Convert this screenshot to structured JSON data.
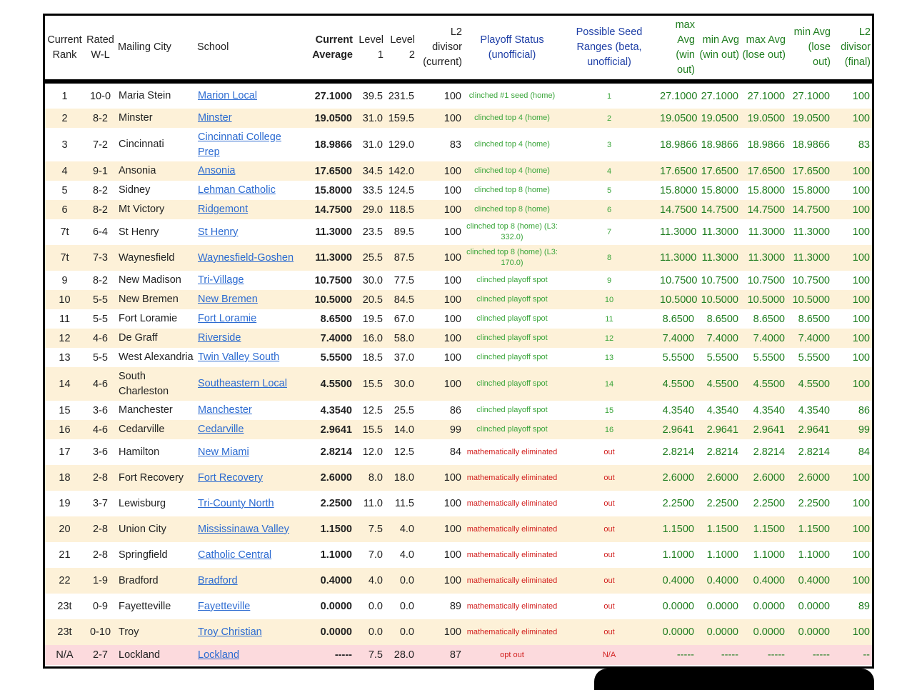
{
  "headers": {
    "rank": "Current Rank",
    "wl": "Rated W-L",
    "city": "Mailing City",
    "school": "School",
    "avg": "Current Average",
    "l1": "Level 1",
    "l2": "Level 2",
    "div": "L2 divisor (current)",
    "status": "Playoff Status (unofficial)",
    "seed": "Possible Seed Ranges (beta, unofficial)",
    "maxwin": "max Avg (win out)",
    "minwin": "min Avg (win out)",
    "maxlose": "max Avg (lose out)",
    "minlose": "min Avg (lose out)",
    "final": "L2 divisor (final)"
  },
  "rows": [
    {
      "rank": "1",
      "wl": "10-0",
      "city": "Maria Stein",
      "school": "Marion Local",
      "avg": "27.1000",
      "l1": "39.5",
      "l2": "231.5",
      "div": "100",
      "status": "clinched #1 seed (home)",
      "seed": "1",
      "maxwin": "27.1000",
      "minwin": "27.1000",
      "maxlose": "27.1000",
      "minlose": "27.1000",
      "final": "100",
      "h": 38,
      "kind": "ok"
    },
    {
      "rank": "2",
      "wl": "8-2",
      "city": "Minster",
      "school": "Minster",
      "avg": "19.0500",
      "l1": "31.0",
      "l2": "159.5",
      "div": "100",
      "status": "clinched top 4 (home)",
      "seed": "2",
      "maxwin": "19.0500",
      "minwin": "19.0500",
      "maxlose": "19.0500",
      "minlose": "19.0500",
      "final": "100",
      "h": 27,
      "kind": "ok"
    },
    {
      "rank": "3",
      "wl": "7-2",
      "city": "Cincinnati",
      "school": "Cincinnati College Prep",
      "avg": "18.9866",
      "l1": "31.0",
      "l2": "129.0",
      "div": "83",
      "status": "clinched top 4 (home)",
      "seed": "3",
      "maxwin": "18.9866",
      "minwin": "18.9866",
      "maxlose": "18.9866",
      "minlose": "18.9866",
      "final": "83",
      "h": 47,
      "kind": "ok"
    },
    {
      "rank": "4",
      "wl": "9-1",
      "city": "Ansonia",
      "school": "Ansonia",
      "avg": "17.6500",
      "l1": "34.5",
      "l2": "142.0",
      "div": "100",
      "status": "clinched top 4 (home)",
      "seed": "4",
      "maxwin": "17.6500",
      "minwin": "17.6500",
      "maxlose": "17.6500",
      "minlose": "17.6500",
      "final": "100",
      "h": 27,
      "kind": "ok"
    },
    {
      "rank": "5",
      "wl": "8-2",
      "city": "Sidney",
      "school": "Lehman Catholic",
      "avg": "15.8000",
      "l1": "33.5",
      "l2": "124.5",
      "div": "100",
      "status": "clinched top 8 (home)",
      "seed": "5",
      "maxwin": "15.8000",
      "minwin": "15.8000",
      "maxlose": "15.8000",
      "minlose": "15.8000",
      "final": "100",
      "h": 27,
      "kind": "ok"
    },
    {
      "rank": "6",
      "wl": "8-2",
      "city": "Mt Victory",
      "school": "Ridgemont",
      "avg": "14.7500",
      "l1": "29.0",
      "l2": "118.5",
      "div": "100",
      "status": "clinched top 8 (home)",
      "seed": "6",
      "maxwin": "14.7500",
      "minwin": "14.7500",
      "maxlose": "14.7500",
      "minlose": "14.7500",
      "final": "100",
      "h": 27,
      "kind": "ok"
    },
    {
      "rank": "7t",
      "wl": "6-4",
      "city": "St Henry",
      "school": "St Henry",
      "avg": "11.3000",
      "l1": "23.5",
      "l2": "89.5",
      "div": "100",
      "status": "clinched top 8 (home) (L3: 332.0)",
      "seed": "7",
      "maxwin": "11.3000",
      "minwin": "11.3000",
      "maxlose": "11.3000",
      "minlose": "11.3000",
      "final": "100",
      "h": 36,
      "kind": "ok"
    },
    {
      "rank": "7t",
      "wl": "7-3",
      "city": "Waynesfield",
      "school": "Waynesfield-Goshen",
      "avg": "11.3000",
      "l1": "25.5",
      "l2": "87.5",
      "div": "100",
      "status": "clinched top 8 (home) (L3: 170.0)",
      "seed": "8",
      "maxwin": "11.3000",
      "minwin": "11.3000",
      "maxlose": "11.3000",
      "minlose": "11.3000",
      "final": "100",
      "h": 36,
      "kind": "ok"
    },
    {
      "rank": "9",
      "wl": "8-2",
      "city": "New Madison",
      "school": "Tri-Village",
      "avg": "10.7500",
      "l1": "30.0",
      "l2": "77.5",
      "div": "100",
      "status": "clinched playoff spot",
      "seed": "9",
      "maxwin": "10.7500",
      "minwin": "10.7500",
      "maxlose": "10.7500",
      "minlose": "10.7500",
      "final": "100",
      "h": 27,
      "kind": "ok"
    },
    {
      "rank": "10",
      "wl": "5-5",
      "city": "New Bremen",
      "school": "New Bremen",
      "avg": "10.5000",
      "l1": "20.5",
      "l2": "84.5",
      "div": "100",
      "status": "clinched playoff spot",
      "seed": "10",
      "maxwin": "10.5000",
      "minwin": "10.5000",
      "maxlose": "10.5000",
      "minlose": "10.5000",
      "final": "100",
      "h": 27,
      "kind": "ok"
    },
    {
      "rank": "11",
      "wl": "5-5",
      "city": "Fort Loramie",
      "school": "Fort Loramie",
      "avg": "8.6500",
      "l1": "19.5",
      "l2": "67.0",
      "div": "100",
      "status": "clinched playoff spot",
      "seed": "11",
      "maxwin": "8.6500",
      "minwin": "8.6500",
      "maxlose": "8.6500",
      "minlose": "8.6500",
      "final": "100",
      "h": 27,
      "kind": "ok"
    },
    {
      "rank": "12",
      "wl": "4-6",
      "city": "De Graff",
      "school": "Riverside",
      "avg": "7.4000",
      "l1": "16.0",
      "l2": "58.0",
      "div": "100",
      "status": "clinched playoff spot",
      "seed": "12",
      "maxwin": "7.4000",
      "minwin": "7.4000",
      "maxlose": "7.4000",
      "minlose": "7.4000",
      "final": "100",
      "h": 27,
      "kind": "ok"
    },
    {
      "rank": "13",
      "wl": "5-5",
      "city": "West Alexandria",
      "school": "Twin Valley South",
      "avg": "5.5500",
      "l1": "18.5",
      "l2": "37.0",
      "div": "100",
      "status": "clinched playoff spot",
      "seed": "13",
      "maxwin": "5.5500",
      "minwin": "5.5500",
      "maxlose": "5.5500",
      "minlose": "5.5500",
      "final": "100",
      "h": 27,
      "kind": "ok"
    },
    {
      "rank": "14",
      "wl": "4-6",
      "city": "South Charleston",
      "school": "Southeastern Local",
      "avg": "4.5500",
      "l1": "15.5",
      "l2": "30.0",
      "div": "100",
      "status": "clinched playoff spot",
      "seed": "14",
      "maxwin": "4.5500",
      "minwin": "4.5500",
      "maxlose": "4.5500",
      "minlose": "4.5500",
      "final": "100",
      "h": 47,
      "kind": "ok"
    },
    {
      "rank": "15",
      "wl": "3-6",
      "city": "Manchester",
      "school": "Manchester",
      "avg": "4.3540",
      "l1": "12.5",
      "l2": "25.5",
      "div": "86",
      "status": "clinched playoff spot",
      "seed": "15",
      "maxwin": "4.3540",
      "minwin": "4.3540",
      "maxlose": "4.3540",
      "minlose": "4.3540",
      "final": "86",
      "h": 27,
      "kind": "ok"
    },
    {
      "rank": "16",
      "wl": "4-6",
      "city": "Cedarville",
      "school": "Cedarville",
      "avg": "2.9641",
      "l1": "15.5",
      "l2": "14.0",
      "div": "99",
      "status": "clinched playoff spot",
      "seed": "16",
      "maxwin": "2.9641",
      "minwin": "2.9641",
      "maxlose": "2.9641",
      "minlose": "2.9641",
      "final": "99",
      "h": 27,
      "kind": "ok"
    },
    {
      "rank": "17",
      "wl": "3-6",
      "city": "Hamilton",
      "school": "New Miami",
      "avg": "2.8214",
      "l1": "12.0",
      "l2": "12.5",
      "div": "84",
      "status": "mathematically eliminated",
      "seed": "out",
      "maxwin": "2.8214",
      "minwin": "2.8214",
      "maxlose": "2.8214",
      "minlose": "2.8214",
      "final": "84",
      "h": 36,
      "kind": "bad"
    },
    {
      "rank": "18",
      "wl": "2-8",
      "city": "Fort Recovery",
      "school": "Fort Recovery",
      "avg": "2.6000",
      "l1": "8.0",
      "l2": "18.0",
      "div": "100",
      "status": "mathematically eliminated",
      "seed": "out",
      "maxwin": "2.6000",
      "minwin": "2.6000",
      "maxlose": "2.6000",
      "minlose": "2.6000",
      "final": "100",
      "h": 36,
      "kind": "bad"
    },
    {
      "rank": "19",
      "wl": "3-7",
      "city": "Lewisburg",
      "school": "Tri-County North",
      "avg": "2.2500",
      "l1": "11.0",
      "l2": "11.5",
      "div": "100",
      "status": "mathematically eliminated",
      "seed": "out",
      "maxwin": "2.2500",
      "minwin": "2.2500",
      "maxlose": "2.2500",
      "minlose": "2.2500",
      "final": "100",
      "h": 36,
      "kind": "bad"
    },
    {
      "rank": "20",
      "wl": "2-8",
      "city": "Union City",
      "school": "Mississinawa Valley",
      "avg": "1.1500",
      "l1": "7.5",
      "l2": "4.0",
      "div": "100",
      "status": "mathematically eliminated",
      "seed": "out",
      "maxwin": "1.1500",
      "minwin": "1.1500",
      "maxlose": "1.1500",
      "minlose": "1.1500",
      "final": "100",
      "h": 36,
      "kind": "bad"
    },
    {
      "rank": "21",
      "wl": "2-8",
      "city": "Springfield",
      "school": "Catholic Central",
      "avg": "1.1000",
      "l1": "7.0",
      "l2": "4.0",
      "div": "100",
      "status": "mathematically eliminated",
      "seed": "out",
      "maxwin": "1.1000",
      "minwin": "1.1000",
      "maxlose": "1.1000",
      "minlose": "1.1000",
      "final": "100",
      "h": 36,
      "kind": "bad"
    },
    {
      "rank": "22",
      "wl": "1-9",
      "city": "Bradford",
      "school": "Bradford",
      "avg": "0.4000",
      "l1": "4.0",
      "l2": "0.0",
      "div": "100",
      "status": "mathematically eliminated",
      "seed": "out",
      "maxwin": "0.4000",
      "minwin": "0.4000",
      "maxlose": "0.4000",
      "minlose": "0.4000",
      "final": "100",
      "h": 36,
      "kind": "bad"
    },
    {
      "rank": "23t",
      "wl": "0-9",
      "city": "Fayetteville",
      "school": "Fayetteville",
      "avg": "0.0000",
      "l1": "0.0",
      "l2": "0.0",
      "div": "89",
      "status": "mathematically eliminated",
      "seed": "out",
      "maxwin": "0.0000",
      "minwin": "0.0000",
      "maxlose": "0.0000",
      "minlose": "0.0000",
      "final": "89",
      "h": 36,
      "kind": "bad"
    },
    {
      "rank": "23t",
      "wl": "0-10",
      "city": "Troy",
      "school": "Troy Christian",
      "avg": "0.0000",
      "l1": "0.0",
      "l2": "0.0",
      "div": "100",
      "status": "mathematically eliminated",
      "seed": "out",
      "maxwin": "0.0000",
      "minwin": "0.0000",
      "maxlose": "0.0000",
      "minlose": "0.0000",
      "final": "100",
      "h": 36,
      "kind": "bad"
    },
    {
      "rank": "N/A",
      "wl": "2-7",
      "city": "Lockland",
      "school": "Lockland",
      "avg": "-----",
      "l1": "7.5",
      "l2": "28.0",
      "div": "87",
      "status": "opt out",
      "seed": "N/A",
      "maxwin": "-----",
      "minwin": "-----",
      "maxlose": "-----",
      "minlose": "-----",
      "final": "--",
      "h": 28,
      "kind": "bad",
      "optout": true
    }
  ]
}
